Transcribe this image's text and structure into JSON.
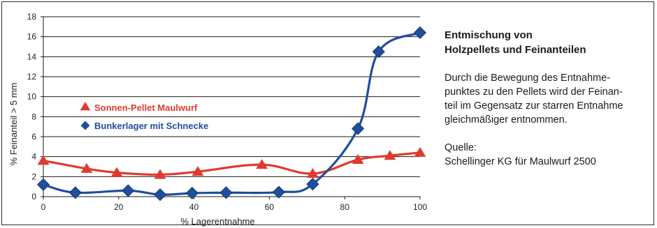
{
  "chart_data": {
    "type": "line",
    "xlabel": "% Lagerentnahme",
    "ylabel": "% Feinanteil > 5 mm",
    "xlim": [
      0,
      100
    ],
    "ylim": [
      0,
      18
    ],
    "xticks": [
      0,
      20,
      40,
      60,
      80,
      100
    ],
    "yticks": [
      0,
      2,
      4,
      6,
      8,
      10,
      12,
      14,
      16,
      18
    ],
    "grid": "horizontal",
    "legend_position": "left-middle",
    "series": [
      {
        "name": "Sonnen-Pellet Maulwurf",
        "color": "#e03a2f",
        "marker": "triangle",
        "x": [
          0,
          11.5,
          19.5,
          31,
          41,
          58,
          71.5,
          83.5,
          92,
          100
        ],
        "y": [
          3.6,
          2.8,
          2.4,
          2.2,
          2.5,
          3.2,
          2.3,
          3.7,
          4.1,
          4.4
        ]
      },
      {
        "name": "Bunkerlager mit Schnecke",
        "color": "#1f4e9c",
        "marker": "diamond",
        "x": [
          0,
          8.5,
          22.5,
          31,
          39.5,
          48.5,
          62.5,
          71.5,
          83.5,
          89,
          100
        ],
        "y": [
          1.2,
          0.4,
          0.6,
          0.2,
          0.35,
          0.4,
          0.45,
          1.25,
          6.8,
          14.5,
          16.4
        ]
      }
    ]
  },
  "side": {
    "title_lines": [
      "Entmischung von",
      "Holzpellets und Feinanteilen"
    ],
    "body_lines": [
      "Durch die Bewegung des Entnahme-",
      "punktes zu den Pellets wird der Feinan-",
      "teil im Gegensatz zur starren Entnahme",
      "gleichmäßiger entnommen."
    ],
    "source_lines": [
      "Quelle:",
      "Schellinger KG für Maulwurf 2500"
    ]
  }
}
